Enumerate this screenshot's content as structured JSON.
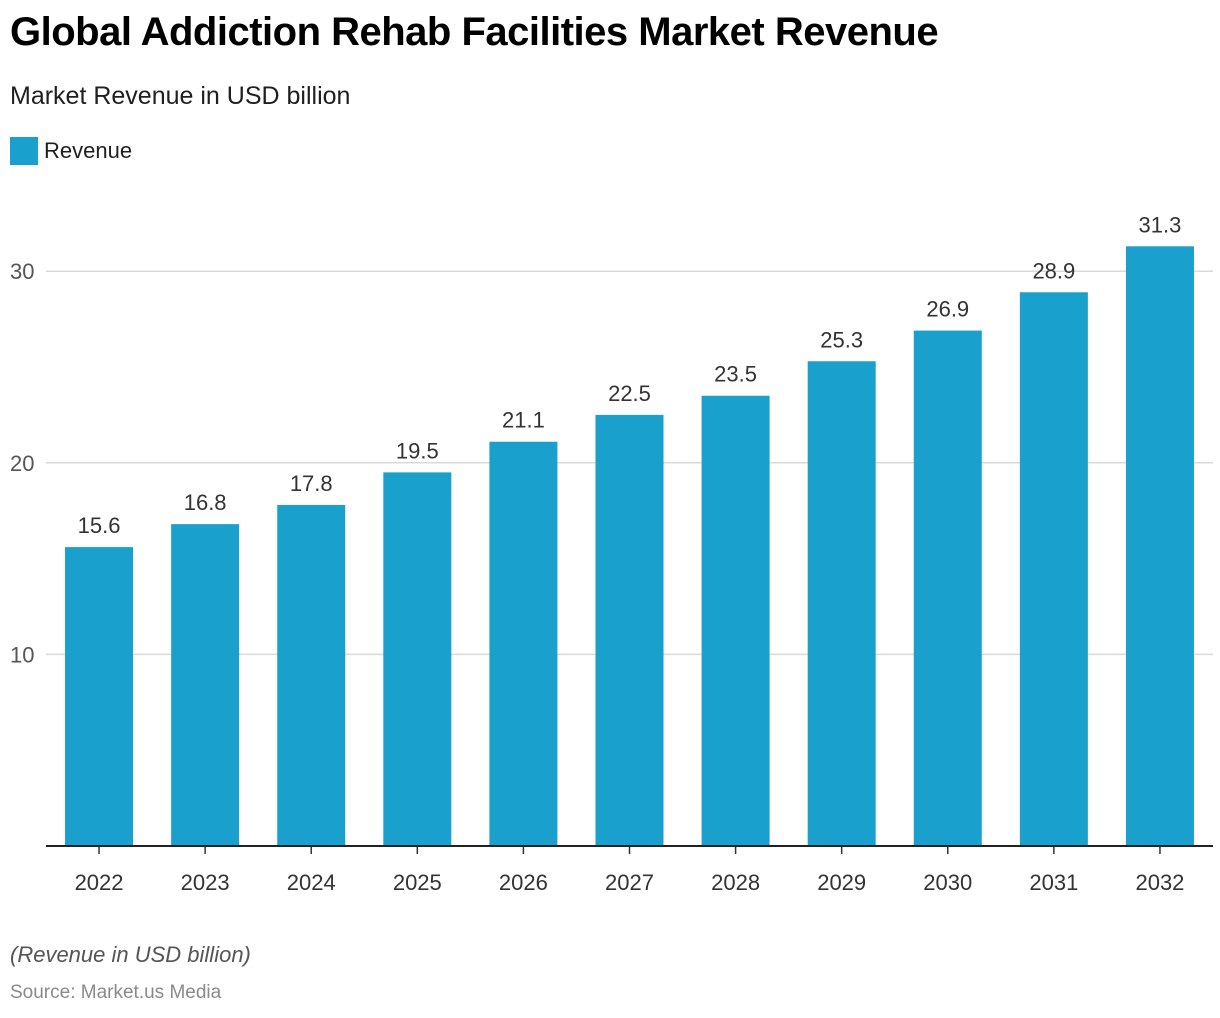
{
  "header": {
    "title": "Global Addiction Rehab Facilities Market Revenue",
    "subtitle": "Market Revenue in USD billion"
  },
  "legend": {
    "label": "Revenue",
    "color": "#1aa0cc"
  },
  "footer": {
    "note": "(Revenue in USD billion)",
    "source": "Source: Market.us Media"
  },
  "chart_data": {
    "type": "bar",
    "title": "Global Addiction Rehab Facilities Market Revenue",
    "subtitle": "Market Revenue in USD billion",
    "categories": [
      "2022",
      "2023",
      "2024",
      "2025",
      "2026",
      "2027",
      "2028",
      "2029",
      "2030",
      "2031",
      "2032"
    ],
    "series": [
      {
        "name": "Revenue",
        "values": [
          15.6,
          16.8,
          17.8,
          19.5,
          21.1,
          22.5,
          23.5,
          25.3,
          26.9,
          28.9,
          31.3
        ],
        "color": "#1aa0cc"
      }
    ],
    "yticks": [
      10,
      20,
      30
    ],
    "ylim": [
      0,
      33
    ],
    "grid": true,
    "data_labels": true,
    "legend_position": "top-left"
  }
}
